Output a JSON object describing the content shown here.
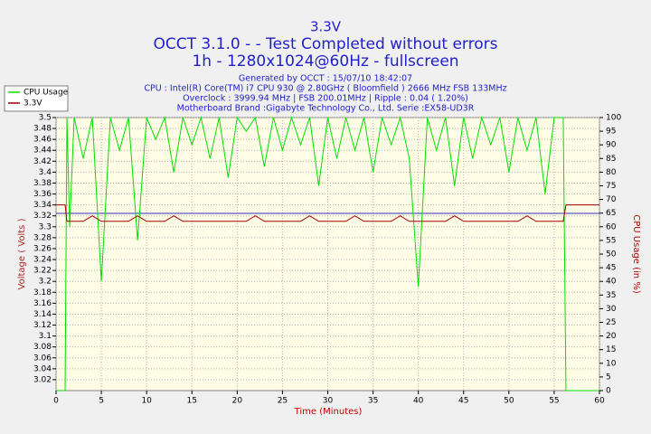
{
  "chart_data": {
    "type": "line",
    "title": "3.3V",
    "subtitle_lines": [
      "OCCT 3.1.0 -  - Test Completed without errors",
      "1h - 1280x1024@60Hz - fullscreen"
    ],
    "info_lines": [
      "Generated by OCCT : 15/07/10 18:42:07",
      "CPU : Intel(R) Core(TM) i7 CPU 930 @ 2.80GHz ( Bloomfield ) 2666 MHz FSB 133MHz",
      "Overclock : 3999.94 MHz | FSB 200.01MHz | Ripple : 0.04 ( 1.20%)",
      "Motherboard Brand :Gigabyte Technology Co., Ltd. Serie :EX58-UD3R"
    ],
    "x_label": "Time (Minutes)",
    "y_label": "Voltage ( Volts )",
    "y2_label": "CPU Usage (in %)",
    "x": [
      0,
      0.5,
      1,
      1.2,
      1.5,
      2,
      3,
      4,
      5,
      6,
      7,
      8,
      9,
      10,
      11,
      12,
      13,
      14,
      15,
      16,
      17,
      18,
      19,
      20,
      21,
      22,
      23,
      24,
      25,
      26,
      27,
      28,
      29,
      30,
      31,
      32,
      33,
      34,
      35,
      36,
      37,
      38,
      39,
      40,
      41,
      42,
      43,
      44,
      45,
      46,
      47,
      48,
      49,
      50,
      51,
      52,
      53,
      54,
      55,
      56,
      56.3,
      56.5,
      57,
      58,
      59,
      60
    ],
    "series": [
      {
        "name": "CPU Usage",
        "color": "#00e000",
        "axis": "y2",
        "values": [
          0,
          0,
          0,
          100,
          60,
          100,
          85,
          100,
          40,
          100,
          88,
          100,
          55,
          100,
          92,
          100,
          80,
          100,
          90,
          100,
          85,
          100,
          78,
          100,
          95,
          100,
          82,
          100,
          88,
          100,
          90,
          100,
          75,
          100,
          85,
          100,
          88,
          100,
          80,
          100,
          90,
          100,
          85,
          38,
          100,
          88,
          100,
          75,
          100,
          85,
          100,
          90,
          100,
          80,
          100,
          88,
          100,
          72,
          100,
          100,
          0,
          0,
          0,
          0,
          0,
          0
        ]
      },
      {
        "name": "3.3V",
        "color": "#a00000",
        "values": [
          3.34,
          3.34,
          3.34,
          3.31,
          3.31,
          3.31,
          3.31,
          3.32,
          3.31,
          3.31,
          3.31,
          3.31,
          3.32,
          3.31,
          3.31,
          3.31,
          3.32,
          3.31,
          3.31,
          3.31,
          3.31,
          3.31,
          3.31,
          3.31,
          3.31,
          3.32,
          3.31,
          3.31,
          3.31,
          3.31,
          3.31,
          3.32,
          3.31,
          3.31,
          3.31,
          3.31,
          3.32,
          3.31,
          3.31,
          3.31,
          3.31,
          3.32,
          3.31,
          3.31,
          3.31,
          3.31,
          3.31,
          3.32,
          3.31,
          3.31,
          3.31,
          3.31,
          3.31,
          3.31,
          3.31,
          3.32,
          3.31,
          3.31,
          3.31,
          3.31,
          3.34,
          3.34,
          3.34,
          3.34,
          3.34,
          3.34
        ]
      }
    ],
    "xlim": [
      0,
      60
    ],
    "xticks": [
      0,
      5,
      10,
      15,
      20,
      25,
      30,
      35,
      40,
      45,
      50,
      55,
      60
    ],
    "ylim": [
      3.0,
      3.5
    ],
    "yticks": [
      3.02,
      3.04,
      3.06,
      3.08,
      3.1,
      3.12,
      3.14,
      3.16,
      3.18,
      3.2,
      3.22,
      3.24,
      3.26,
      3.28,
      3.3,
      3.32,
      3.34,
      3.36,
      3.38,
      3.4,
      3.42,
      3.44,
      3.46,
      3.48,
      3.5
    ],
    "y2lim": [
      0,
      100
    ],
    "y2ticks": [
      0,
      5,
      10,
      15,
      20,
      25,
      30,
      35,
      40,
      45,
      50,
      55,
      60,
      65,
      70,
      75,
      80,
      85,
      90,
      95,
      100
    ],
    "grid": true
  }
}
